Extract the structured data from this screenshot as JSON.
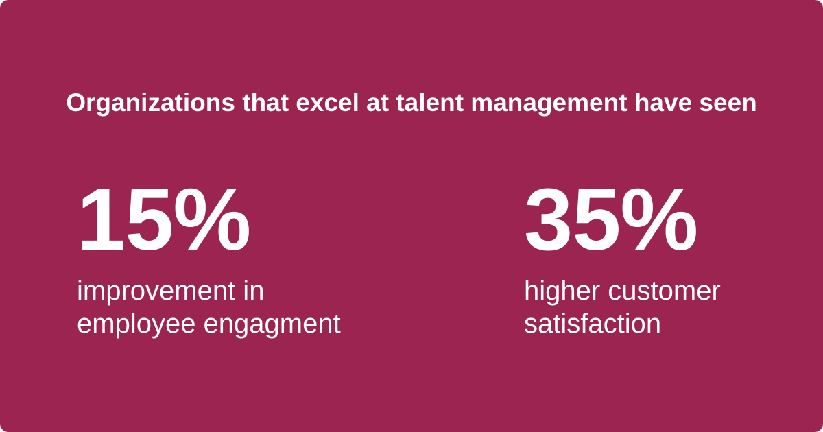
{
  "background_color": "#9c2450",
  "text_color": "#ffffff",
  "headline": "Organizations that excel at talent management have seen",
  "stats": [
    {
      "value": "15%",
      "caption_lines": [
        "improvement in",
        "employee engagment"
      ]
    },
    {
      "value": "35%",
      "caption_lines": [
        "higher customer",
        "satisfaction"
      ]
    }
  ]
}
